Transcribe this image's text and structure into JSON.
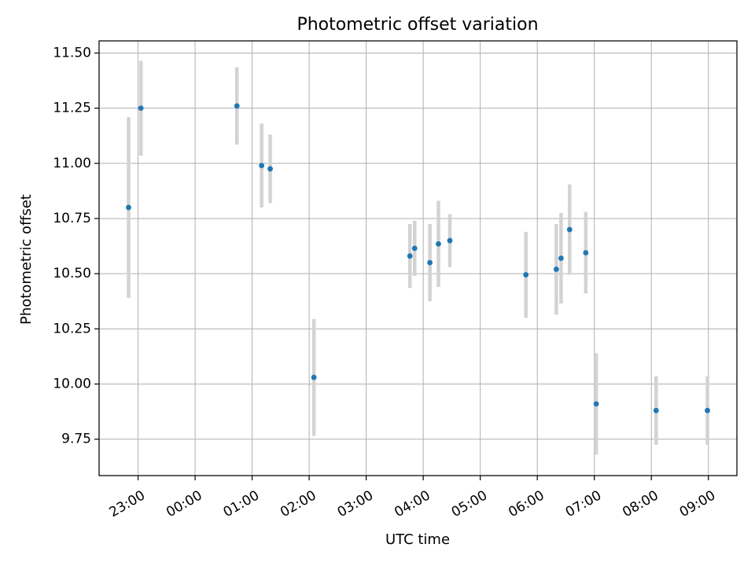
{
  "chart_data": {
    "type": "scatter",
    "title": "Photometric offset variation",
    "xlabel": "UTC time",
    "ylabel": "Photometric offset",
    "x_unit": "minutes after 23:00 UTC",
    "xlim": [
      -41,
      630
    ],
    "ylim": [
      9.585,
      11.555
    ],
    "x_ticks": [
      {
        "value": 0,
        "label": "23:00"
      },
      {
        "value": 60,
        "label": "00:00"
      },
      {
        "value": 120,
        "label": "01:00"
      },
      {
        "value": 180,
        "label": "02:00"
      },
      {
        "value": 240,
        "label": "03:00"
      },
      {
        "value": 300,
        "label": "04:00"
      },
      {
        "value": 360,
        "label": "05:00"
      },
      {
        "value": 420,
        "label": "06:00"
      },
      {
        "value": 480,
        "label": "07:00"
      },
      {
        "value": 540,
        "label": "08:00"
      },
      {
        "value": 600,
        "label": "09:00"
      }
    ],
    "y_ticks": [
      {
        "value": 9.75,
        "label": "9.75"
      },
      {
        "value": 10.0,
        "label": "10.00"
      },
      {
        "value": 10.25,
        "label": "10.25"
      },
      {
        "value": 10.5,
        "label": "10.50"
      },
      {
        "value": 10.75,
        "label": "10.75"
      },
      {
        "value": 11.0,
        "label": "11.00"
      },
      {
        "value": 11.25,
        "label": "11.25"
      },
      {
        "value": 11.5,
        "label": "11.50"
      }
    ],
    "grid": true,
    "point_color": "#1f77b4",
    "errorbar_color": "#d3d3d3",
    "points": [
      {
        "x": "22:50",
        "y": 10.8,
        "err": 0.41
      },
      {
        "x": "23:03",
        "y": 11.25,
        "err": 0.215
      },
      {
        "x": "00:44",
        "y": 11.26,
        "err": 0.175
      },
      {
        "x": "01:10",
        "y": 10.99,
        "err": 0.19
      },
      {
        "x": "01:19",
        "y": 10.975,
        "err": 0.155
      },
      {
        "x": "02:05",
        "y": 10.03,
        "err": 0.265
      },
      {
        "x": "03:46",
        "y": 10.58,
        "err": 0.145
      },
      {
        "x": "03:51",
        "y": 10.615,
        "err": 0.125
      },
      {
        "x": "04:07",
        "y": 10.55,
        "err": 0.175
      },
      {
        "x": "04:16",
        "y": 10.635,
        "err": 0.195
      },
      {
        "x": "04:28",
        "y": 10.65,
        "err": 0.12
      },
      {
        "x": "05:48",
        "y": 10.495,
        "err": 0.195
      },
      {
        "x": "06:20",
        "y": 10.52,
        "err": 0.205
      },
      {
        "x": "06:25",
        "y": 10.57,
        "err": 0.205
      },
      {
        "x": "06:34",
        "y": 10.7,
        "err": 0.205
      },
      {
        "x": "06:51",
        "y": 10.595,
        "err": 0.185
      },
      {
        "x": "07:02",
        "y": 9.91,
        "err": 0.23
      },
      {
        "x": "08:05",
        "y": 9.88,
        "err": 0.155
      },
      {
        "x": "08:59",
        "y": 9.88,
        "err": 0.155
      }
    ]
  }
}
